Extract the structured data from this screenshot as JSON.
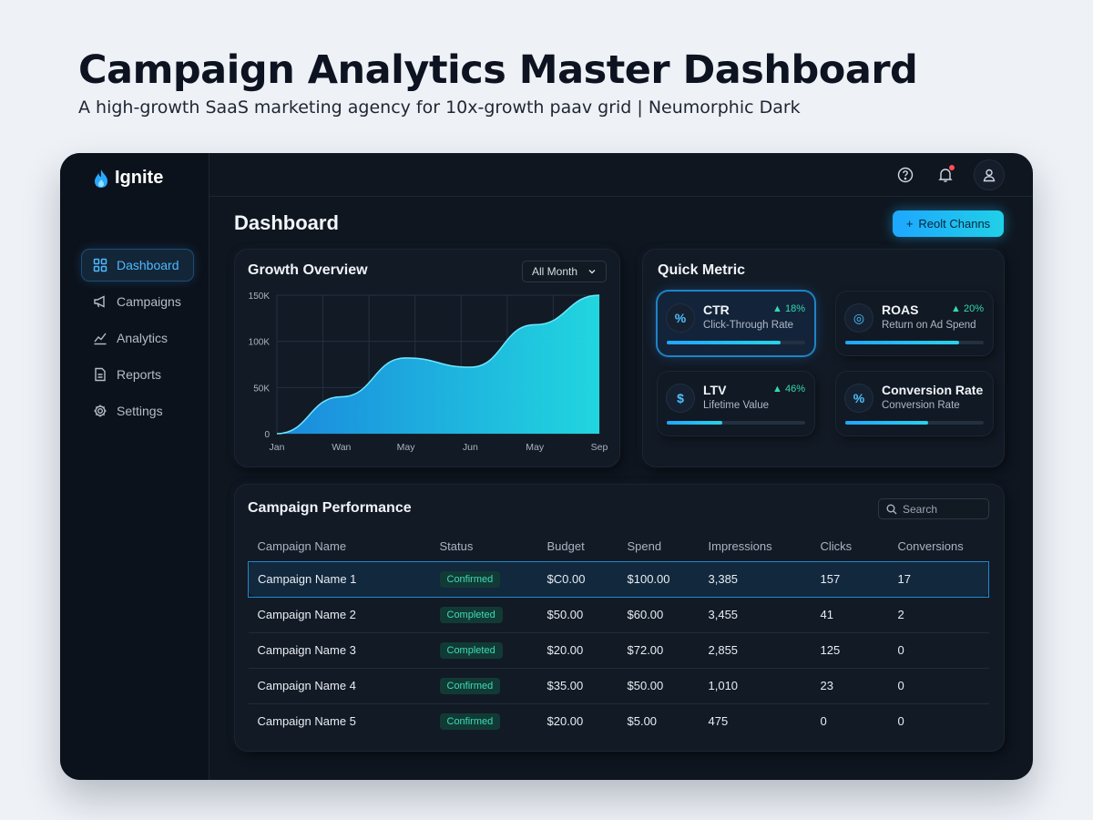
{
  "page": {
    "title": "Campaign Analytics Master Dashboard",
    "subtitle": "A high-growth SaaS marketing agency for 10x-growth paav grid | Neumorphic Dark"
  },
  "brand": {
    "name": "Ignite",
    "icon": "flame-icon"
  },
  "sidebar": {
    "items": [
      {
        "label": "Dashboard",
        "icon": "grid-icon",
        "active": true
      },
      {
        "label": "Campaigns",
        "icon": "megaphone-icon"
      },
      {
        "label": "Analytics",
        "icon": "trend-line-icon"
      },
      {
        "label": "Reports",
        "icon": "document-icon"
      },
      {
        "label": "Settings",
        "icon": "gear-icon"
      }
    ]
  },
  "topbar": {
    "icons": [
      "help-icon",
      "bell-icon",
      "user-icon"
    ]
  },
  "main": {
    "title": "Dashboard",
    "cta_label": "Reolt Channs"
  },
  "growth": {
    "title": "Growth Overview",
    "period": "All Month",
    "chart_data": {
      "type": "area",
      "x": [
        "Jan",
        "Wan",
        "May",
        "Jun",
        "May",
        "Sep"
      ],
      "y_ticks": [
        "150K",
        "100K",
        "50K",
        "0"
      ],
      "ylim": [
        0,
        150000
      ],
      "values": [
        0,
        40000,
        82000,
        72000,
        118000,
        150000
      ],
      "grid": true
    }
  },
  "quick_metrics": {
    "title": "Quick Metric",
    "items": [
      {
        "icon": "%",
        "name": "CTR",
        "sub": "Click-Through Rate",
        "delta": "▲ 18%",
        "progress": 0.82,
        "active": true
      },
      {
        "icon": "◎",
        "name": "ROAS",
        "sub": "Return on Ad Spend",
        "delta": "▲ 20%",
        "progress": 0.82
      },
      {
        "icon": "$",
        "name": "LTV",
        "sub": "Lifetime Value",
        "delta": "▲ 46%",
        "progress": 0.4
      },
      {
        "icon": "%",
        "name": "Conversion Rate",
        "sub": "Conversion Rate",
        "delta": "",
        "progress": 0.6
      }
    ]
  },
  "performance": {
    "title": "Campaign Performance",
    "search_placeholder": "Search",
    "columns": [
      "Campaign Name",
      "Status",
      "Budget",
      "Spend",
      "Impressions",
      "Clicks",
      "Conversions"
    ],
    "rows": [
      {
        "name": "Campaign Name 1",
        "status": "Confirmed",
        "budget": "$C0.00",
        "spend": "$100.00",
        "impressions": "3,385",
        "clicks": "157",
        "conversions": "17",
        "selected": true
      },
      {
        "name": "Campaign Name 2",
        "status": "Completed",
        "budget": "$50.00",
        "spend": "$60.00",
        "impressions": "3,455",
        "clicks": "41",
        "conversions": "2"
      },
      {
        "name": "Campaign Name 3",
        "status": "Completed",
        "budget": "$20.00",
        "spend": "$72.00",
        "impressions": "2,855",
        "clicks": "125",
        "conversions": "0"
      },
      {
        "name": "Campaign Name 4",
        "status": "Confirmed",
        "budget": "$35.00",
        "spend": "$50.00",
        "impressions": "1,010",
        "clicks": "23",
        "conversions": "0"
      },
      {
        "name": "Campaign Name 5",
        "status": "Confirmed",
        "budget": "$20.00",
        "spend": "$5.00",
        "impressions": "475",
        "clicks": "0",
        "conversions": "0"
      }
    ]
  },
  "colors": {
    "accent": "#1ea7ff",
    "teal": "#22d3e6",
    "success": "#3ddbb5",
    "bg": "#0f1620"
  }
}
